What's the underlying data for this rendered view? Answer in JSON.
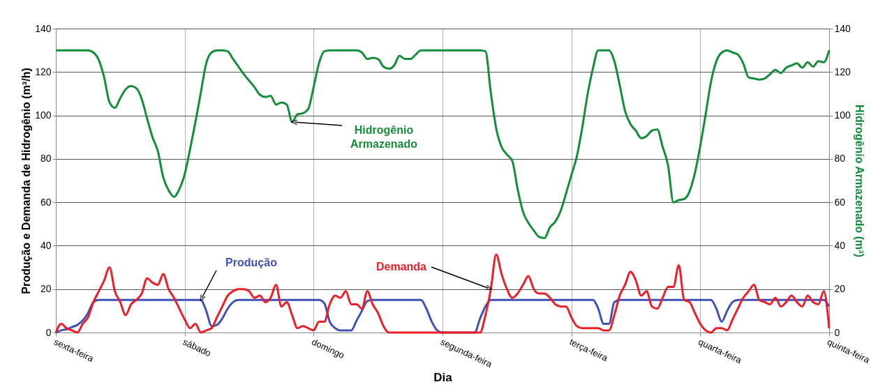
{
  "chart_data": {
    "type": "line",
    "xlabel": "Dia",
    "ylabel": "Produção e Demanda de Hidrogênio (m³/h)",
    "y2label": "Hidrogênio Armazenado (m³)",
    "categories": [
      "sexta-feira",
      null,
      null,
      null,
      null,
      null,
      null,
      null,
      null,
      null,
      null,
      null,
      null,
      null,
      null,
      null,
      null,
      null,
      null,
      null,
      null,
      null,
      null,
      null,
      "sábado",
      null,
      null,
      null,
      null,
      null,
      null,
      null,
      null,
      null,
      null,
      null,
      null,
      null,
      null,
      null,
      null,
      null,
      null,
      null,
      null,
      null,
      null,
      null,
      "domingo",
      null,
      null,
      null,
      null,
      null,
      null,
      null,
      null,
      null,
      null,
      null,
      null,
      null,
      null,
      null,
      null,
      null,
      null,
      null,
      null,
      null,
      null,
      null,
      "segunda-feira",
      null,
      null,
      null,
      null,
      null,
      null,
      null,
      null,
      null,
      null,
      null,
      null,
      null,
      null,
      null,
      null,
      null,
      null,
      null,
      null,
      null,
      null,
      null,
      "terça-feira",
      null,
      null,
      null,
      null,
      null,
      null,
      null,
      null,
      null,
      null,
      null,
      null,
      null,
      null,
      null,
      null,
      null,
      null,
      null,
      null,
      null,
      null,
      null,
      "quarta-feira",
      null,
      null,
      null,
      null,
      null,
      null,
      null,
      null,
      null,
      null,
      null,
      null,
      null,
      null,
      null,
      null,
      null,
      null,
      null,
      null,
      null,
      null,
      null,
      "quinta-feira"
    ],
    "ylim": [
      0,
      140
    ],
    "yticks": [
      0,
      20,
      40,
      60,
      80,
      100,
      120,
      140
    ],
    "y2lim": [
      0,
      140
    ],
    "y2ticks": [
      0,
      20,
      40,
      60,
      80,
      100,
      120,
      140
    ],
    "grid": true,
    "line_style": "solid",
    "series": [
      {
        "name": "Produção",
        "color": "#3f51b5",
        "values": [
          0,
          1,
          1.5,
          2.5,
          3.5,
          5.5,
          9,
          14,
          15,
          15,
          15,
          15,
          15,
          15,
          15,
          15,
          15,
          15,
          15,
          15,
          15,
          15,
          15,
          15,
          15,
          15,
          15,
          15,
          10,
          3,
          3.5,
          6.5,
          11,
          14,
          15,
          15,
          15,
          15,
          15,
          15,
          15,
          15,
          15,
          15,
          15,
          15,
          15,
          15,
          15,
          15,
          13.5,
          5,
          2,
          1,
          1,
          1,
          5.5,
          10,
          14.5,
          15,
          15,
          15,
          15,
          15,
          15,
          15,
          15,
          15,
          15,
          11,
          5,
          1,
          0,
          0,
          0,
          0,
          0,
          0,
          0,
          6.5,
          12,
          15,
          15,
          15,
          15,
          15,
          15,
          15,
          15,
          15,
          15,
          15,
          15,
          15,
          15,
          15,
          15,
          15,
          15,
          15,
          15,
          11,
          4,
          4,
          14,
          15,
          15,
          15,
          15,
          15,
          15,
          15,
          15,
          15,
          15,
          15,
          15,
          15,
          15,
          15,
          15,
          15,
          15,
          11,
          5,
          10,
          14,
          15,
          15,
          15,
          15,
          15,
          15,
          15,
          15,
          15,
          15,
          15,
          15,
          15,
          15,
          15,
          15,
          15,
          12
        ]
      },
      {
        "name": "Demanda",
        "color": "#ee1c25",
        "values": [
          0,
          4,
          2,
          1,
          0,
          4,
          7,
          14,
          19,
          24,
          30,
          19,
          14,
          8,
          13,
          15,
          18,
          25,
          23,
          22,
          27,
          20,
          16,
          11,
          6,
          2,
          4,
          0,
          1,
          2,
          7,
          12,
          17,
          19,
          20,
          20,
          19,
          16,
          17,
          14,
          16,
          22,
          12,
          14,
          8,
          2,
          3,
          2,
          1,
          5,
          5,
          13,
          17,
          16,
          19,
          13,
          13,
          11,
          19,
          13,
          9,
          3,
          0,
          0,
          0,
          0,
          0,
          0,
          0,
          0,
          0,
          0,
          0,
          0,
          0,
          0,
          0,
          0,
          0,
          0,
          8,
          20,
          36,
          27,
          20,
          16,
          18,
          22,
          26,
          20,
          18,
          18,
          16,
          13,
          12,
          12,
          7,
          3,
          2,
          2,
          2,
          2,
          1,
          1,
          8,
          17,
          22,
          28,
          24,
          17,
          19,
          12,
          11,
          16,
          21,
          21,
          31,
          15,
          14,
          9,
          4,
          1,
          0,
          2,
          2,
          1,
          6,
          11,
          16,
          19,
          22,
          15,
          14,
          13,
          16,
          12,
          14,
          17,
          14,
          12,
          17,
          14,
          13,
          19,
          2
        ]
      },
      {
        "name": "Hidrogênio Armazenado",
        "color": "#138d38",
        "axis": "y2",
        "values": [
          130,
          130,
          130,
          130,
          130,
          130,
          130,
          129,
          125.5,
          117.5,
          106,
          103.5,
          108,
          112,
          113.5,
          112.5,
          107.5,
          98.5,
          90,
          83.5,
          71.5,
          65.5,
          62.5,
          66,
          73,
          84.5,
          97,
          110.5,
          124,
          129,
          130,
          130,
          129.5,
          126,
          122.5,
          119,
          116,
          113,
          109.5,
          108.5,
          109,
          105,
          106,
          105,
          97,
          100.5,
          101,
          103,
          113,
          124,
          129.5,
          130,
          130,
          130,
          130,
          130,
          130,
          129,
          126,
          126.5,
          126,
          122.5,
          121.5,
          123,
          127.5,
          126,
          126,
          128,
          130,
          130,
          130,
          130,
          130,
          130,
          130,
          130,
          130,
          130,
          130,
          130,
          129.5,
          110.5,
          94,
          85.5,
          82,
          79,
          66,
          55.5,
          50.5,
          47,
          44,
          43.5,
          48.5,
          51,
          56,
          64,
          72.5,
          81,
          94,
          109.5,
          121.5,
          130,
          130,
          130,
          125,
          114,
          102,
          96,
          93,
          89.5,
          90.5,
          93,
          93.5,
          85.5,
          77,
          60,
          61,
          61.5,
          65,
          73.5,
          86,
          100.5,
          115.5,
          125,
          129,
          130,
          129,
          128,
          124,
          117.5,
          117,
          116.5,
          117,
          119,
          121,
          119.5,
          122,
          123,
          124,
          122,
          124.5,
          122.5,
          125,
          124.5,
          130
        ]
      }
    ]
  }
}
